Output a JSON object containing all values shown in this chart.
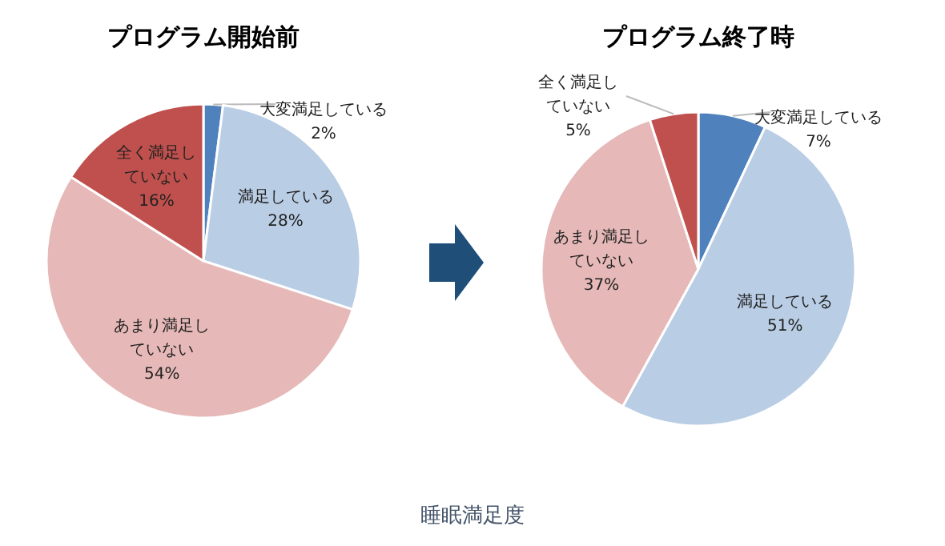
{
  "chart_data": [
    {
      "type": "pie",
      "title": "プログラム開始前",
      "categories": [
        "大変満足している",
        "満足している",
        "あまり満足していない",
        "全く満足していない"
      ],
      "values": [
        2,
        28,
        54,
        16
      ],
      "value_labels": [
        "2%",
        "28%",
        "54%",
        "16%"
      ],
      "colors": [
        "#4f81bd",
        "#b9cde5",
        "#e6b9b8",
        "#c0504d"
      ]
    },
    {
      "type": "pie",
      "title": "プログラム終了時",
      "categories": [
        "大変満足している",
        "満足している",
        "あまり満足していない",
        "全く満足していない"
      ],
      "values": [
        7,
        51,
        37,
        5
      ],
      "value_labels": [
        "7%",
        "51%",
        "37%",
        "5%"
      ],
      "colors": [
        "#4f81bd",
        "#b9cde5",
        "#e6b9b8",
        "#c0504d"
      ],
      "annotations": [
        "睡眠満足度"
      ]
    }
  ]
}
